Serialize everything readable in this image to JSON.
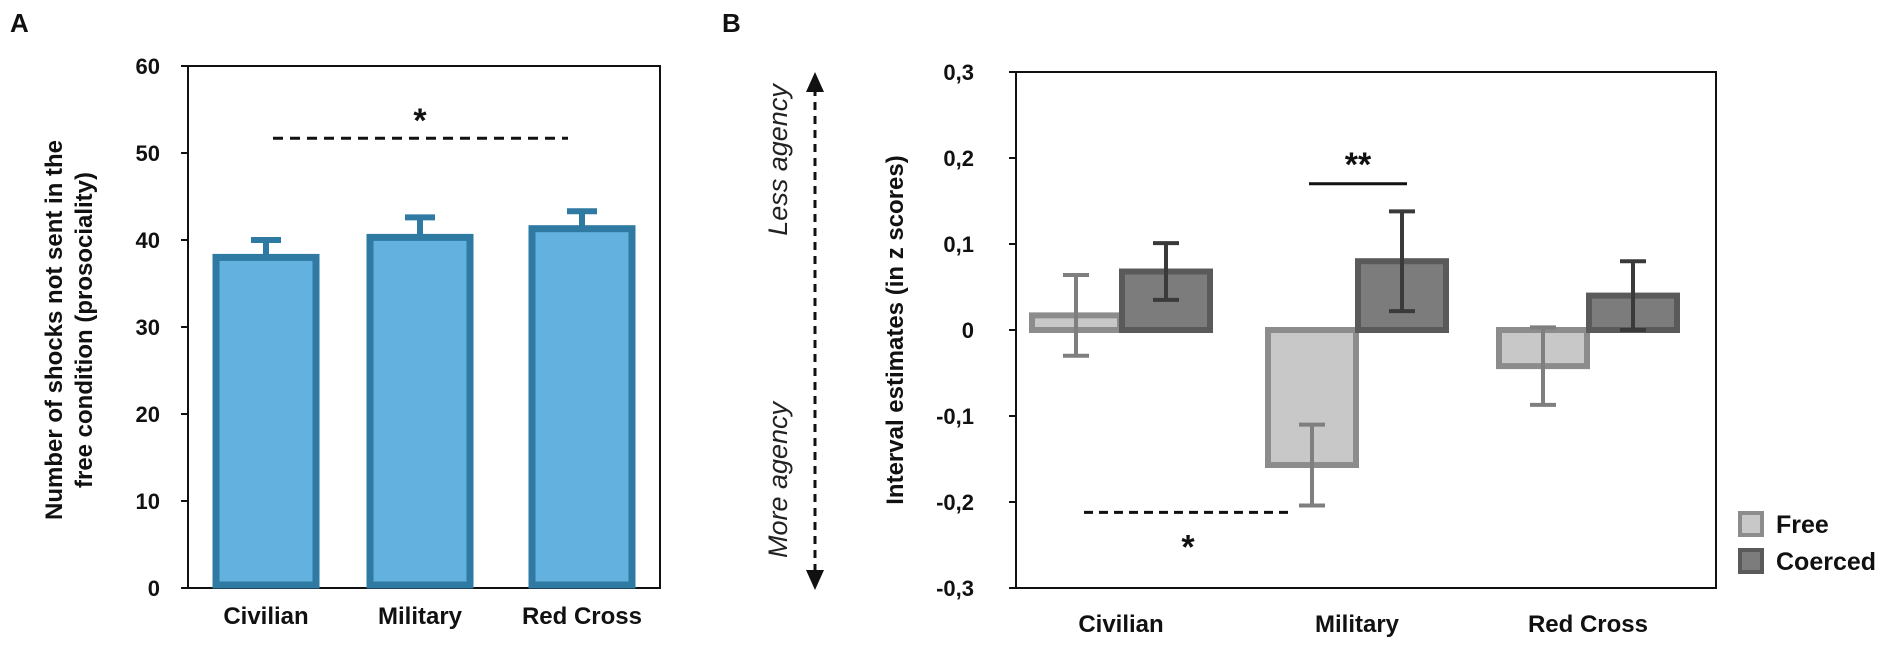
{
  "chart_data": [
    {
      "panel_label": "A",
      "type": "bar",
      "categories": [
        "Civilian",
        "Military",
        "Red Cross"
      ],
      "values": [
        38,
        40.3,
        41.3
      ],
      "errors": [
        2,
        2.3,
        2
      ],
      "ylabel_line1": "Number of shocks not sent in the",
      "ylabel_line2": "free condition (prosociality)",
      "ylim": [
        0,
        60
      ],
      "yticks": [
        "0",
        "10",
        "20",
        "30",
        "40",
        "50",
        "60"
      ],
      "bar_color": "#62b1de",
      "bar_edge_color": "#2e7aa3",
      "significance": {
        "label": "*",
        "y": 51.7
      }
    },
    {
      "panel_label": "B",
      "type": "bar",
      "categories": [
        "Civilian",
        "Military",
        "Red Cross"
      ],
      "ylabel": "Interval estimates (in z scores)",
      "ylim": [
        -0.3,
        0.3
      ],
      "yticks": [
        "-0,3",
        "-0,2",
        "-0,1",
        "0",
        "0,1",
        "0,2",
        "0,3"
      ],
      "series": [
        {
          "name": "Free",
          "values": [
            0.017,
            -0.157,
            -0.042
          ],
          "errors": [
            0.047,
            0.047,
            0.045
          ],
          "color": "#c8c8c8",
          "edge": "#8c8c8c",
          "err_color": "#7f7f7f"
        },
        {
          "name": "Coerced",
          "values": [
            0.068,
            0.08,
            0.04
          ],
          "errors": [
            0.033,
            0.058,
            0.04
          ],
          "color": "#7c7c7c",
          "edge": "#5a5a5a",
          "err_color": "#3a3a3a"
        }
      ],
      "significance": [
        {
          "label": "**",
          "y": 0.17
        },
        {
          "label": "*",
          "y": -0.212
        }
      ],
      "annotations": {
        "top": "Less agency",
        "bottom": "More agency"
      }
    }
  ]
}
